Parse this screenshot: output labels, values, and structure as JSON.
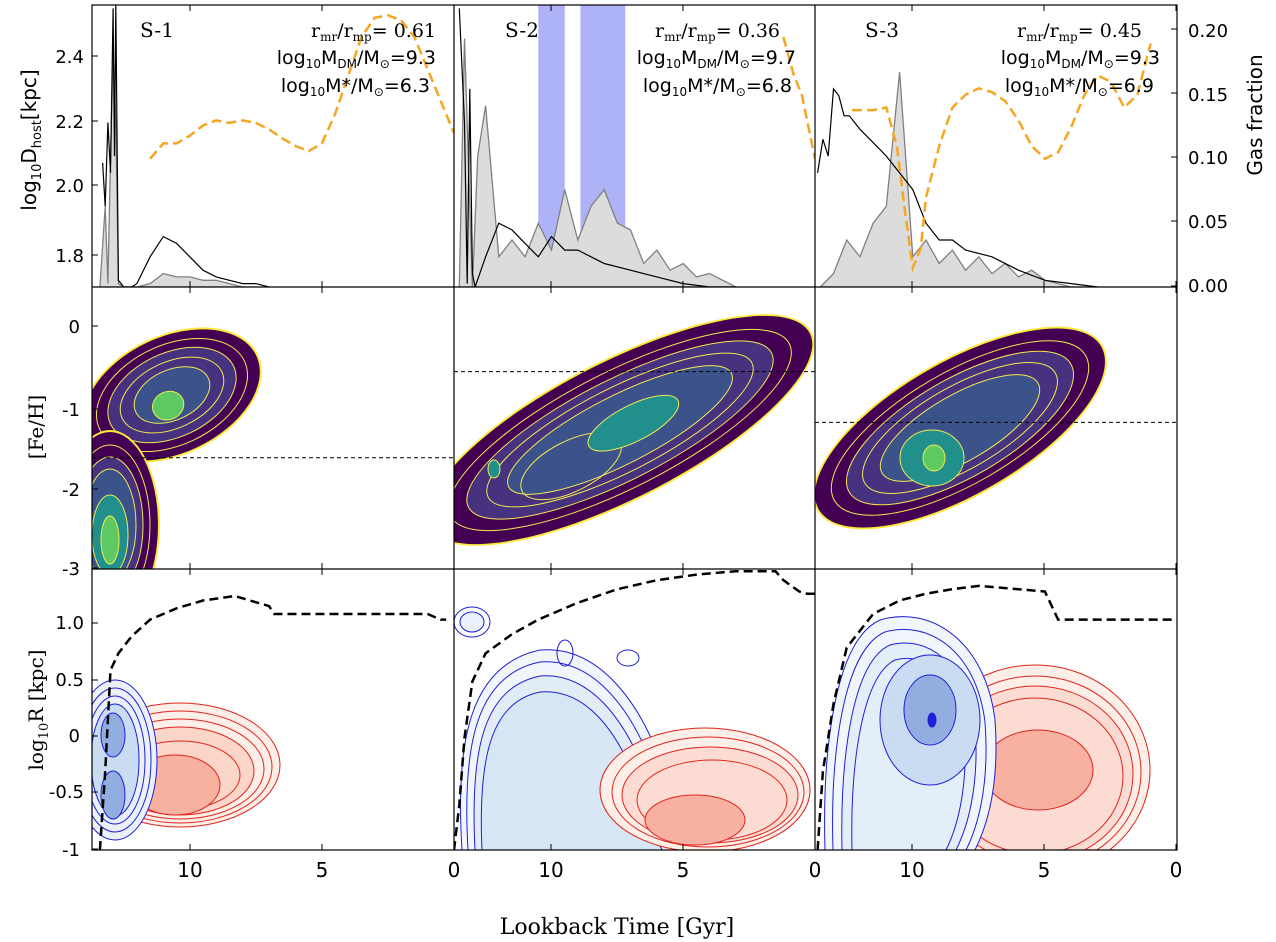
{
  "figure": {
    "xlabel": "Lookback Time [Gyr]",
    "row_ylabels": [
      "log10Dhost[kpc]",
      "[Fe/H]",
      "log10R [kpc]"
    ],
    "right_ylabel": "Gas fraction"
  },
  "colors": {
    "gas_line": "#f5a623",
    "fill_gray": "#dcdcdc",
    "quench_band": "#aeb2f7",
    "blue_contour": "#1f1fd6",
    "red_contour": "#e0241c",
    "yellow_contour": "#f2e94e",
    "kde_dark": "#440154",
    "kde_mid": "#3b528b",
    "kde_teal": "#21908d",
    "kde_green": "#5ec962"
  },
  "chart_data": [
    {
      "type": "line",
      "panel": "S-1 orbit",
      "title": "S-1",
      "annotations": [
        "r_mr/r_mp = 0.61",
        "log10 M_DM/M_sun = 9.3",
        "log10 M*/M_sun = 6.3"
      ],
      "xlim": [
        13.7,
        0
      ],
      "ylim": [
        1.71,
        2.55
      ],
      "y2lim": [
        0,
        0.22
      ],
      "xticks": [
        10,
        5
      ],
      "yticks": [
        1.8,
        2.0,
        2.2,
        2.4
      ],
      "distance": {
        "x": [
          13.3,
          13.2,
          13.1,
          13.0,
          12.9,
          12.85,
          12.8,
          12.7,
          12.6,
          12.5,
          12.4,
          12.2,
          12.0,
          11.5,
          11.0,
          10.5,
          10.0,
          9.5,
          9.0,
          8.5,
          8.0,
          7.5,
          7.0
        ],
        "y": [
          2.08,
          1.95,
          2.2,
          2.05,
          2.54,
          2.1,
          2.55,
          1.73,
          1.72,
          1.71,
          1.71,
          1.71,
          1.72,
          1.8,
          1.86,
          1.84,
          1.8,
          1.76,
          1.74,
          1.73,
          1.72,
          1.72,
          1.71
        ]
      },
      "gas_fraction": {
        "x": [
          11.5,
          11.0,
          10.5,
          10.0,
          9.5,
          9.0,
          8.5,
          8.0,
          7.5,
          7.0,
          6.5,
          6.0,
          5.5,
          5.0,
          4.5,
          4.0,
          3.5,
          3.0,
          2.5,
          2.0,
          1.5,
          1.0,
          0.5,
          0.0
        ],
        "y": [
          0.1,
          0.112,
          0.112,
          0.118,
          0.126,
          0.13,
          0.128,
          0.13,
          0.128,
          0.123,
          0.116,
          0.11,
          0.106,
          0.112,
          0.135,
          0.165,
          0.195,
          0.21,
          0.212,
          0.208,
          0.195,
          0.17,
          0.145,
          0.12
        ]
      },
      "infall_rate": {
        "x": [
          13.4,
          13.2,
          13.1,
          13.0,
          12.9,
          12.8,
          12.7,
          12.5,
          12.0,
          11.5,
          11.0,
          10.5,
          10.0,
          9.5,
          9.0,
          8.5,
          8.0,
          7.5
        ],
        "y": [
          1.71,
          1.95,
          1.72,
          2.1,
          2.4,
          2.2,
          1.72,
          1.71,
          1.71,
          1.72,
          1.75,
          1.74,
          1.74,
          1.73,
          1.73,
          1.72,
          1.71,
          1.71
        ]
      }
    },
    {
      "type": "line",
      "panel": "S-2 orbit",
      "title": "S-2",
      "annotations": [
        "r_mr/r_mp = 0.36",
        "log10 M_DM/M_sun = 9.7",
        "log10 M*/M_sun = 6.8"
      ],
      "xlim": [
        13.7,
        0
      ],
      "ylim": [
        1.71,
        2.55
      ],
      "y2lim": [
        0,
        0.22
      ],
      "xticks": [
        10,
        5,
        0
      ],
      "quench_bands": [
        [
          10.5,
          9.5
        ],
        [
          8.9,
          7.2
        ]
      ],
      "distance": {
        "x": [
          13.5,
          13.3,
          13.2,
          13.1,
          13.0,
          12.9,
          12.5,
          12.0,
          11.5,
          11.0,
          10.5,
          10.0,
          9.5,
          9.0,
          8.5,
          8.0,
          7.0,
          6.0,
          5.0,
          4.0,
          3.0
        ],
        "y": [
          2.54,
          2.2,
          1.72,
          2.3,
          1.75,
          1.71,
          1.8,
          1.9,
          1.88,
          1.84,
          1.8,
          1.86,
          1.82,
          1.82,
          1.8,
          1.78,
          1.76,
          1.74,
          1.72,
          1.71,
          1.71
        ]
      },
      "gas_fraction": {
        "x": [
          1.2,
          1.0,
          0.8,
          0.5,
          0.3,
          0.0
        ],
        "y": [
          0.195,
          0.18,
          0.165,
          0.15,
          0.13,
          0.1
        ]
      },
      "infall_rate": {
        "x": [
          13.5,
          13.3,
          13.0,
          12.8,
          12.5,
          12.0,
          11.5,
          11.0,
          10.5,
          10.0,
          9.5,
          9.0,
          8.5,
          8.0,
          7.5,
          7.0,
          6.5,
          6.0,
          5.5,
          5.0,
          4.5,
          4.0,
          3.5,
          3.0
        ],
        "y": [
          1.71,
          2.45,
          1.71,
          2.1,
          2.25,
          1.8,
          1.85,
          1.8,
          1.9,
          1.82,
          2.0,
          1.85,
          1.95,
          2.0,
          1.9,
          1.88,
          1.78,
          1.82,
          1.76,
          1.78,
          1.74,
          1.75,
          1.73,
          1.71
        ]
      }
    },
    {
      "type": "line",
      "panel": "S-3 orbit",
      "title": "S-3",
      "annotations": [
        "r_mr/r_mp = 0.45",
        "log10 M_DM/M_sun = 9.3",
        "log10 M*/M_sun = 6.9"
      ],
      "xlim": [
        13.7,
        0
      ],
      "ylim": [
        1.71,
        2.55
      ],
      "y2lim": [
        0,
        0.22
      ],
      "xticks": [
        10,
        5,
        0
      ],
      "y2ticks": [
        0.0,
        0.05,
        0.1,
        0.15,
        0.2
      ],
      "distance": {
        "x": [
          13.6,
          13.4,
          13.2,
          13.0,
          12.8,
          12.6,
          12.4,
          12.2,
          12.0,
          11.5,
          11.0,
          10.5,
          10.0,
          9.5,
          9.0,
          8.5,
          8.0,
          7.0,
          6.0,
          5.0,
          4.0,
          3.0
        ],
        "y": [
          2.05,
          2.15,
          2.1,
          2.3,
          2.28,
          2.22,
          2.22,
          2.2,
          2.18,
          2.14,
          2.1,
          2.05,
          2.0,
          1.9,
          1.85,
          1.85,
          1.82,
          1.8,
          1.76,
          1.73,
          1.72,
          1.71
        ]
      },
      "gas_fraction": {
        "x": [
          12.3,
          12.0,
          11.5,
          11.0,
          10.6,
          10.3,
          10.0,
          9.7,
          9.5,
          9.0,
          8.5,
          8.0,
          7.5,
          7.0,
          6.5,
          6.0,
          5.5,
          5.0,
          4.5,
          4.0,
          3.5,
          3.0,
          2.5,
          2.0,
          1.5,
          1.0
        ],
        "y": [
          0.138,
          0.138,
          0.138,
          0.14,
          0.11,
          0.06,
          0.015,
          0.03,
          0.07,
          0.11,
          0.14,
          0.15,
          0.155,
          0.152,
          0.145,
          0.13,
          0.11,
          0.1,
          0.105,
          0.125,
          0.15,
          0.165,
          0.16,
          0.14,
          0.15,
          0.19
        ]
      },
      "infall_rate": {
        "x": [
          13.5,
          13.0,
          12.5,
          12.0,
          11.5,
          11.0,
          10.5,
          10.0,
          9.5,
          9.0,
          8.5,
          8.0,
          7.5,
          7.0,
          6.5,
          6.0,
          5.5,
          5.0,
          4.5,
          4.0,
          3.5
        ],
        "y": [
          1.71,
          1.75,
          1.85,
          1.8,
          1.9,
          1.95,
          2.35,
          1.8,
          1.85,
          1.78,
          1.82,
          1.76,
          1.8,
          1.75,
          1.78,
          1.74,
          1.76,
          1.73,
          1.72,
          1.71,
          1.71
        ]
      }
    },
    {
      "type": "heatmap",
      "panel": "S-1 metallicity",
      "xlim": [
        13.7,
        0
      ],
      "ylim": [
        -3,
        0.5
      ],
      "yticks": [
        0,
        -1,
        -2,
        -3
      ],
      "threshold_feh": -1.62
    },
    {
      "type": "heatmap",
      "panel": "S-2 metallicity",
      "xlim": [
        13.7,
        0
      ],
      "ylim": [
        -3,
        0.5
      ],
      "threshold_feh": -0.55
    },
    {
      "type": "heatmap",
      "panel": "S-3 metallicity",
      "xlim": [
        13.7,
        0
      ],
      "ylim": [
        -3,
        0.5
      ],
      "threshold_feh": -1.18
    },
    {
      "type": "heatmap",
      "panel": "S-1 radius",
      "xlim": [
        13.7,
        0
      ],
      "ylim": [
        -1,
        1.5
      ],
      "yticks": [
        1.0,
        0.5,
        0,
        -0.5,
        -1
      ],
      "boundary": {
        "x": [
          13.4,
          13.2,
          13.0,
          12.7,
          12.2,
          11.5,
          10.5,
          9.5,
          8.3,
          7.0,
          6.8,
          1.0,
          0.5,
          0.3
        ],
        "y": [
          -1.0,
          -0.3,
          0.6,
          0.75,
          0.9,
          1.05,
          1.15,
          1.22,
          1.26,
          1.17,
          1.1,
          1.1,
          1.05,
          1.05
        ]
      }
    },
    {
      "type": "heatmap",
      "panel": "S-2 radius",
      "xlim": [
        13.7,
        0
      ],
      "ylim": [
        -1,
        1.5
      ],
      "boundary": {
        "x": [
          13.7,
          13.5,
          13.3,
          13.0,
          12.5,
          11.5,
          10.5,
          9.0,
          7.5,
          6.0,
          4.5,
          3.0,
          1.5,
          1.2,
          0.6,
          0.3,
          0.0
        ],
        "y": [
          -1.0,
          -0.6,
          0.0,
          0.5,
          0.75,
          0.92,
          1.05,
          1.2,
          1.32,
          1.4,
          1.45,
          1.48,
          1.48,
          1.4,
          1.3,
          1.28,
          1.28
        ]
      }
    },
    {
      "type": "heatmap",
      "panel": "S-3 radius",
      "xlim": [
        13.7,
        0
      ],
      "ylim": [
        -1,
        1.5
      ],
      "boundary": {
        "x": [
          13.6,
          13.4,
          13.0,
          12.5,
          12.0,
          11.5,
          10.5,
          9.5,
          8.5,
          7.5,
          6.5,
          5.0,
          4.8,
          4.5,
          3.5,
          0.0
        ],
        "y": [
          -1.0,
          -0.3,
          0.3,
          0.8,
          0.95,
          1.1,
          1.22,
          1.28,
          1.32,
          1.35,
          1.33,
          1.3,
          1.2,
          1.05,
          1.05,
          1.05
        ]
      }
    }
  ],
  "panels": [
    {
      "title": "S-1",
      "ratio": "= 0.61",
      "mdm": "=9.3",
      "mstar": "=6.3"
    },
    {
      "title": "S-2",
      "ratio": "= 0.36",
      "mdm": "=9.7",
      "mstar": "=6.8"
    },
    {
      "title": "S-3",
      "ratio": "= 0.45",
      "mdm": "=9.3",
      "mstar": "=6.9"
    }
  ],
  "text": {
    "r": "r",
    "mr": "mr",
    "mp": "mp",
    "slash_r": "/r",
    "log": "log",
    "ten": "10",
    "M": "M",
    "DM": "DM",
    "slash_M": "/M",
    "sun": "⊙",
    "star": "M*",
    "dhost_a": "log",
    "dhost_b": "10",
    "dhost_c": "D",
    "dhost_d": "host",
    "dhost_e": "[kpc]",
    "feh": "[Fe/H]",
    "logr_a": "log",
    "logr_b": "10",
    "logr_c": "R [kpc]",
    "gas": "Gas fraction",
    "xlabel": "Lookback Time [Gyr]"
  },
  "ticks": {
    "row1_y": [
      "2.4",
      "2.2",
      "2.0",
      "1.8"
    ],
    "row1_y2": [
      "0.20",
      "0.15",
      "0.10",
      "0.05",
      "0.00"
    ],
    "row2_y": [
      "0",
      "-1",
      "-2",
      "-3"
    ],
    "row3_y": [
      "1.0",
      "0.5",
      "0",
      "-0.5",
      "-1"
    ],
    "x_p1": [
      "10",
      "5"
    ],
    "x_p2": [
      "0",
      "10",
      "5"
    ],
    "x_p3": [
      "0",
      "10",
      "5",
      "0"
    ]
  }
}
